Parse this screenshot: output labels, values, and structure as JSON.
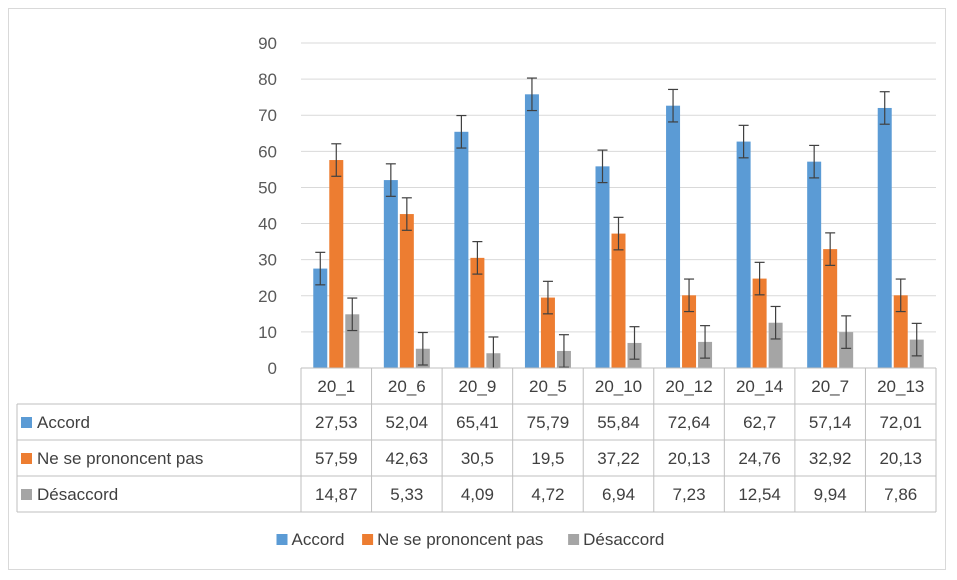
{
  "chart_data": {
    "type": "bar",
    "categories": [
      "20_1",
      "20_6",
      "20_9",
      "20_5",
      "20_10",
      "20_12",
      "20_14",
      "20_7",
      "20_13"
    ],
    "ylim": [
      0,
      90
    ],
    "y_ticks": [
      "0",
      "10",
      "20",
      "30",
      "40",
      "50",
      "60",
      "70",
      "80",
      "90"
    ],
    "error_bars": true,
    "grid": true,
    "legend_position": "bottom",
    "has_data_table": true,
    "series": [
      {
        "name": "Accord",
        "color": "#5b9bd5",
        "values": [
          27.53,
          52.04,
          65.41,
          75.79,
          55.84,
          72.64,
          62.7,
          57.14,
          72.01
        ],
        "labels": [
          "27,53",
          "52,04",
          "65,41",
          "75,79",
          "55,84",
          "72,64",
          "62,7",
          "57,14",
          "72,01"
        ]
      },
      {
        "name": "Ne se prononcent pas",
        "color": "#ed7d31",
        "values": [
          57.59,
          42.63,
          30.5,
          19.5,
          37.22,
          20.13,
          24.76,
          32.92,
          20.13
        ],
        "labels": [
          "57,59",
          "42,63",
          "30,5",
          "19,5",
          "37,22",
          "20,13",
          "24,76",
          "32,92",
          "20,13"
        ]
      },
      {
        "name": "Désaccord",
        "color": "#a5a5a5",
        "values": [
          14.87,
          5.33,
          4.09,
          4.72,
          6.94,
          7.23,
          12.54,
          9.94,
          7.86
        ],
        "labels": [
          "14,87",
          "5,33",
          "4,09",
          "4,72",
          "6,94",
          "7,23",
          "12,54",
          "9,94",
          "7,86"
        ]
      }
    ]
  }
}
